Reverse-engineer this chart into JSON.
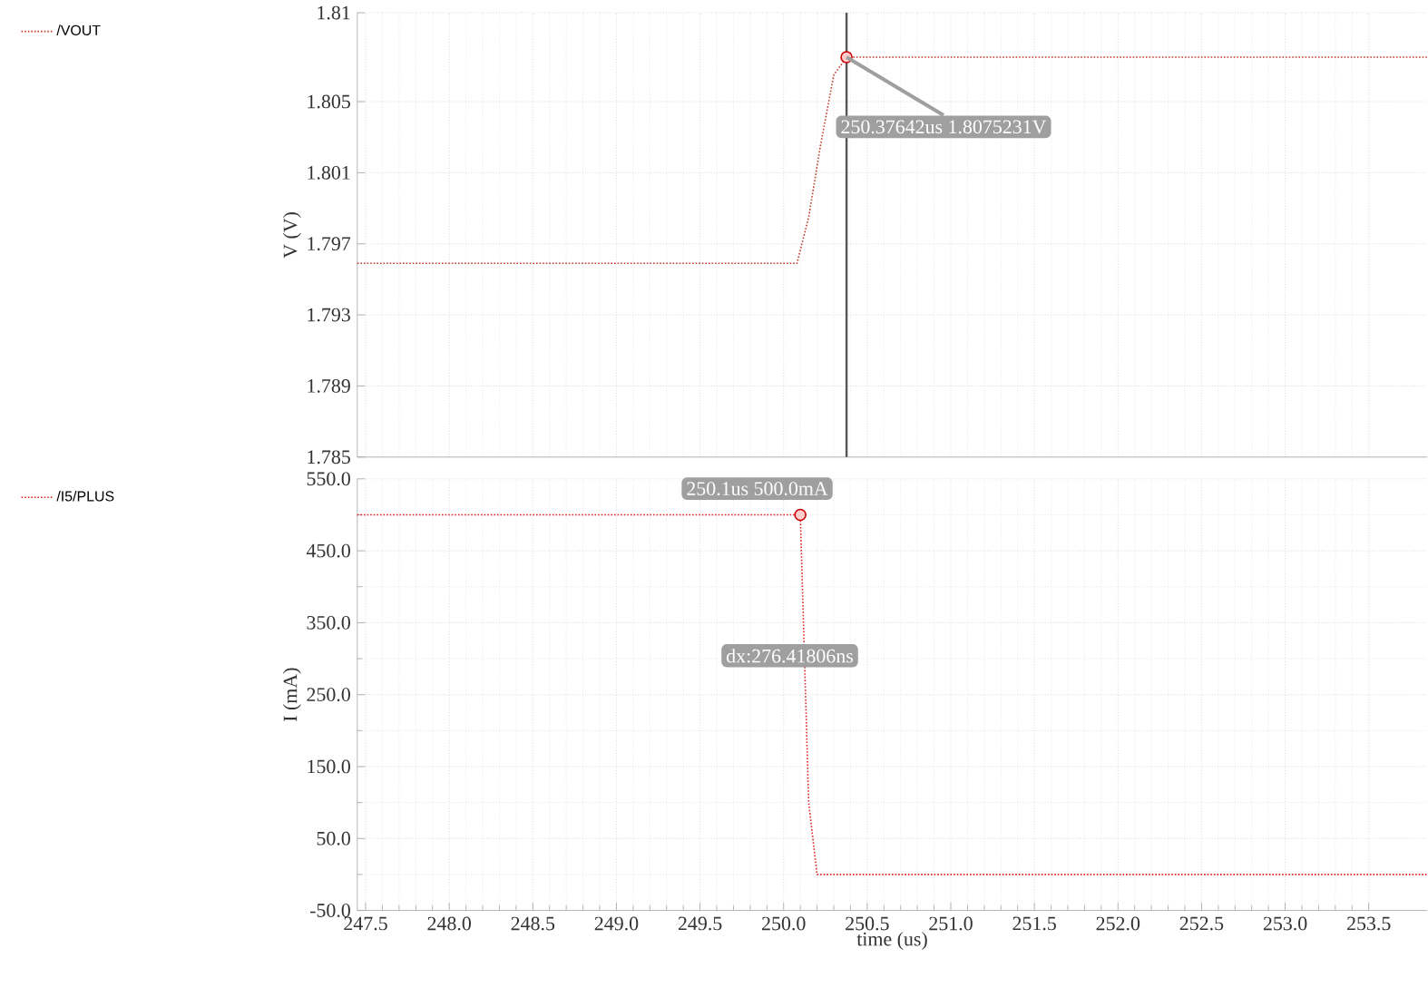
{
  "chart_data": [
    {
      "type": "line",
      "ylabel": "V (V)",
      "xlim": [
        247.45,
        253.85
      ],
      "ylim": [
        1.785,
        1.81
      ],
      "xticks": [
        247.5,
        248.0,
        248.5,
        249.0,
        249.5,
        250.0,
        250.5,
        251.0,
        251.5,
        252.0,
        252.5,
        253.0,
        253.5
      ],
      "yticks": [
        1.785,
        1.789,
        1.793,
        1.797,
        1.801,
        1.805,
        1.81
      ],
      "tick_labels": "y",
      "grid": true,
      "legend": "left",
      "line_style": "dotted",
      "series": [
        {
          "name": "/VOUT",
          "color": "#c0392b",
          "x": [
            247.45,
            250.08,
            250.15,
            250.22,
            250.3,
            250.37642,
            253.85
          ],
          "values": [
            1.7959,
            1.7959,
            1.7985,
            1.8025,
            1.8065,
            1.8075,
            1.8075
          ]
        }
      ],
      "ref_lines": [
        {
          "axis": "x",
          "value": 250.37642,
          "color": "#555555"
        }
      ],
      "annotations": [
        {
          "text": "250.37642us 1.8075231V",
          "x": 250.37642,
          "y": 1.8075
        }
      ]
    },
    {
      "type": "line",
      "xlabel": "time (us)",
      "ylabel": "I (mA)",
      "xlim": [
        247.45,
        253.85
      ],
      "ylim": [
        -50,
        550
      ],
      "xticks": [
        247.5,
        {
          "value": 248,
          "label": "248.0"
        },
        248.5,
        {
          "value": 249,
          "label": "249.0"
        },
        249.5,
        {
          "value": 250,
          "label": "250.0"
        },
        250.5,
        {
          "value": 251,
          "label": "251.0"
        },
        251.5,
        {
          "value": 252,
          "label": "252.0"
        },
        252.5,
        {
          "value": 253,
          "label": "253.0"
        },
        253.5
      ],
      "yticks": [
        {
          "value": -50,
          "label": "-50.0"
        },
        {
          "value": 50,
          "label": "50.0"
        },
        {
          "value": 150,
          "label": "150.0"
        },
        {
          "value": 250,
          "label": "250.0"
        },
        {
          "value": 350,
          "label": "350.0"
        },
        {
          "value": 450,
          "label": "450.0"
        },
        {
          "value": 550,
          "label": "550.0"
        }
      ],
      "grid": true,
      "legend": "left",
      "line_style": "dotted",
      "series": [
        {
          "name": "/I5/PLUS",
          "color": "#e02020",
          "x": [
            247.45,
            250.1,
            250.15,
            250.2,
            253.85
          ],
          "values": [
            500,
            500,
            100,
            0,
            0
          ]
        }
      ],
      "annotations": [
        {
          "text": "250.1us 500.0mA",
          "x": 250.1,
          "y": 500
        },
        "dx:276.41806ns"
      ]
    }
  ]
}
